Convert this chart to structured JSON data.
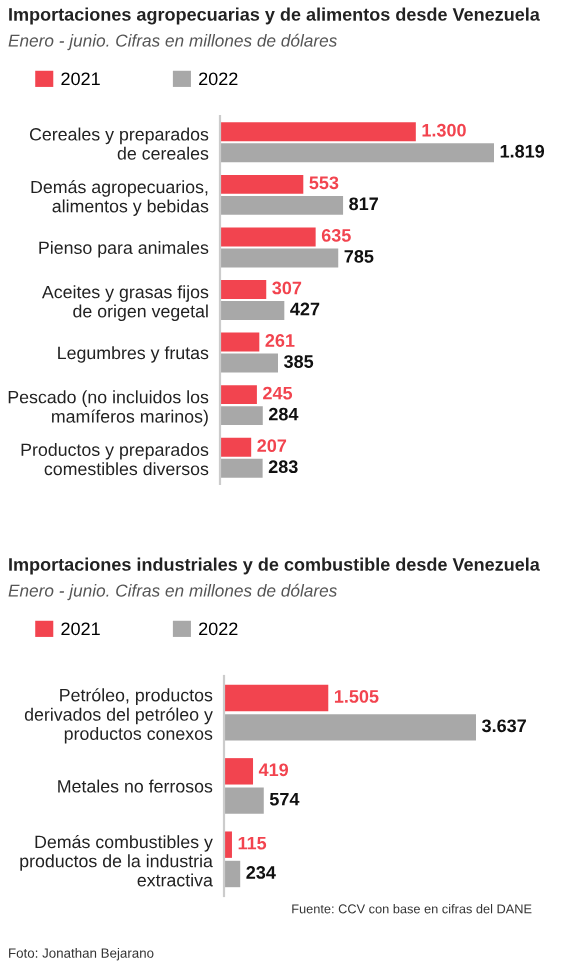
{
  "chart_data": [
    {
      "type": "bar",
      "orientation": "horizontal",
      "title": "Importaciones agropecuarias y de alimentos desde Venezuela",
      "subtitle": "Enero - junio. Cifras en millones de dólares",
      "categories": [
        "Cereales y preparados\nde cereales",
        "Demás agropecuarios,\nalimentos y bebidas",
        "Pienso para animales",
        "Aceites y grasas fijos\nde origen vegetal",
        "Legumbres y frutas",
        "Pescado (no incluidos los\nmamíferos marinos)",
        "Productos y preparados\ncomestibles diversos"
      ],
      "series": [
        {
          "name": "2021",
          "color": "#f2444f",
          "values": [
            1300,
            553,
            635,
            307,
            261,
            245,
            207
          ],
          "value_labels": [
            "1.300",
            "553",
            "635",
            "307",
            "261",
            "245",
            "207"
          ]
        },
        {
          "name": "2022",
          "color": "#a8a8a8",
          "values": [
            1819,
            817,
            785,
            427,
            385,
            284,
            283
          ],
          "value_labels": [
            "1.819",
            "817",
            "785",
            "427",
            "385",
            "284",
            "283"
          ]
        }
      ],
      "legend": "top left",
      "tick_labels": "y",
      "grid": false
    },
    {
      "type": "bar",
      "orientation": "horizontal",
      "title": "Importaciones industriales y de combustible desde Venezuela",
      "subtitle": "Enero - junio. Cifras en millones de dólares",
      "categories": [
        "Petróleo, productos\nderivados del petróleo y\nproductos conexos",
        "Metales no ferrosos",
        "Demás combustibles y\nproductos de la industria\nextractiva"
      ],
      "series": [
        {
          "name": "2021",
          "color": "#f2444f",
          "values": [
            1505,
            419,
            115
          ],
          "value_labels": [
            "1.505",
            "419",
            "115"
          ]
        },
        {
          "name": "2022",
          "color": "#a8a8a8",
          "values": [
            3637,
            574,
            234
          ],
          "value_labels": [
            "3.637",
            "574",
            "234"
          ]
        }
      ],
      "legend": "top left",
      "tick_labels": "y",
      "grid": false,
      "annotations": [
        "Fuente: CCV con base en cifras del DANE",
        "Foto: Jonathan Bejarano"
      ]
    }
  ]
}
